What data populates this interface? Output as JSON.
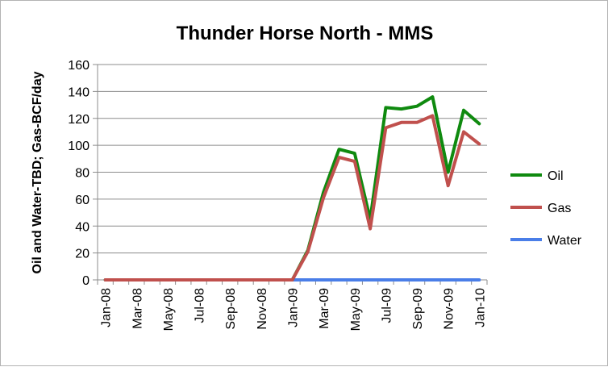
{
  "chart_data": {
    "type": "line",
    "title": "Thunder Horse North - MMS",
    "xlabel": "",
    "ylabel": "Oil and Water-TBD; Gas-BCF/day",
    "ylim": [
      0,
      160
    ],
    "yticks": [
      "0",
      "20",
      "40",
      "60",
      "80",
      "100",
      "120",
      "140",
      "160"
    ],
    "xtick_labels": [
      "Jan-08",
      "Mar-08",
      "May-08",
      "Jul-08",
      "Sep-08",
      "Nov-08",
      "Jan-09",
      "Mar-09",
      "May-09",
      "Jul-09",
      "Sep-09",
      "Nov-09",
      "Jan-10"
    ],
    "x": [
      "Jan-08",
      "Feb-08",
      "Mar-08",
      "Apr-08",
      "May-08",
      "Jun-08",
      "Jul-08",
      "Aug-08",
      "Sep-08",
      "Oct-08",
      "Nov-08",
      "Dec-08",
      "Jan-09",
      "Feb-09",
      "Mar-09",
      "Apr-09",
      "May-09",
      "Jun-09",
      "Jul-09",
      "Aug-09",
      "Sep-09",
      "Oct-09",
      "Nov-09",
      "Dec-09",
      "Jan-10"
    ],
    "grid": true,
    "legend_position": "right",
    "series": [
      {
        "name": "Oil",
        "color": "#0f8a0f",
        "values": [
          0,
          0,
          0,
          0,
          0,
          0,
          0,
          0,
          0,
          0,
          0,
          0,
          0,
          22,
          65,
          97,
          94,
          45,
          128,
          127,
          129,
          136,
          80,
          126,
          116
        ]
      },
      {
        "name": "Gas",
        "color": "#c0504d",
        "values": [
          0,
          0,
          0,
          0,
          0,
          0,
          0,
          0,
          0,
          0,
          0,
          0,
          0,
          21,
          61,
          91,
          88,
          38,
          113,
          117,
          117,
          122,
          70,
          110,
          101
        ]
      },
      {
        "name": "Water",
        "color": "#4a7ee8",
        "values": [
          0,
          0,
          0,
          0,
          0,
          0,
          0,
          0,
          0,
          0,
          0,
          0,
          0,
          0,
          0,
          0,
          0,
          0,
          0,
          0,
          0,
          0,
          0,
          0,
          0
        ]
      }
    ]
  }
}
